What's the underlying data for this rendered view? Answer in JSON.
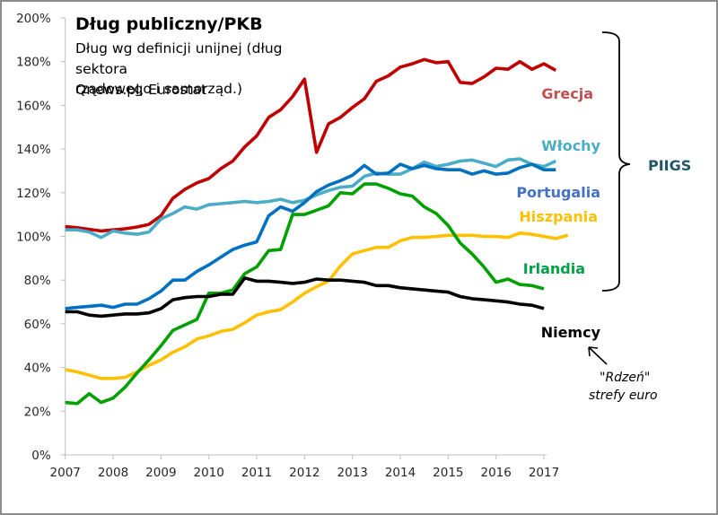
{
  "chart_data": {
    "type": "line",
    "title": "Dług publiczny/PKB",
    "subtitle": "Dług wg definicji unijnej (dług sektora rządowego i samorząd.)",
    "subtitle_lines": [
      "Dług wg definicji unijnej (dług sektora",
      "rządowego i samorząd.)"
    ],
    "source": "Qnews.pl, Eurostat",
    "xlabel": "",
    "ylabel": "",
    "xlim": [
      2007,
      2017
    ],
    "ylim": [
      0,
      200
    ],
    "x_ticks": [
      "2007",
      "2008",
      "2009",
      "2010",
      "2011",
      "2012",
      "2013",
      "2014",
      "2015",
      "2016",
      "2017"
    ],
    "y_ticks": [
      "0%",
      "20%",
      "40%",
      "60%",
      "80%",
      "100%",
      "120%",
      "140%",
      "160%",
      "180%",
      "200%"
    ],
    "y_tick_values": [
      0,
      20,
      40,
      60,
      80,
      100,
      120,
      140,
      160,
      180,
      200
    ],
    "grid": false,
    "legend": "inline labels at right",
    "x_step": 0.25,
    "series": [
      {
        "name": "Grecja",
        "color": "#c00000",
        "label_color": "#c0504d",
        "x_start": 2007.0,
        "values": [
          104.5,
          104,
          103.2,
          102.5,
          103,
          103.5,
          104.3,
          105.5,
          109.5,
          117.5,
          121.5,
          124.5,
          126.5,
          131,
          134.5,
          141,
          146,
          154.5,
          158,
          164,
          172,
          138.5,
          151.5,
          154.5,
          159,
          163,
          171,
          173.5,
          177.5,
          179,
          181,
          179.5,
          180,
          170.5,
          170,
          173,
          177,
          176.5,
          180,
          176.5,
          179,
          176
        ]
      },
      {
        "name": "Włochy",
        "color": "#4bacc6",
        "label_color": "#4bacc6",
        "x_start": 2007.0,
        "values": [
          103,
          103,
          102,
          99.5,
          102.5,
          101.5,
          101,
          102,
          108,
          110.5,
          113.5,
          112.5,
          114.5,
          115,
          115.5,
          116,
          115.5,
          116,
          117,
          115.5,
          116.5,
          119,
          121,
          122.5,
          123,
          127.5,
          129,
          128.5,
          128.5,
          131,
          134,
          132,
          133,
          134.5,
          135,
          133.5,
          132,
          135,
          135.5,
          133,
          132,
          134.5
        ]
      },
      {
        "name": "Portugalia",
        "color": "#0070c0",
        "label_color": "#4472c4",
        "x_start": 2007.0,
        "values": [
          67,
          67.5,
          68,
          68.5,
          67.5,
          69,
          69,
          71.5,
          75,
          80,
          80,
          84,
          87,
          90.5,
          94,
          96,
          97.5,
          109.5,
          113.5,
          111.5,
          115.5,
          120.5,
          123.5,
          125.5,
          128,
          132.5,
          128.5,
          129,
          133,
          131,
          132.5,
          131,
          130.5,
          130.5,
          128.5,
          130,
          128.5,
          129,
          131.5,
          133,
          130.5,
          130.5
        ]
      },
      {
        "name": "Hiszpania",
        "color": "#ffc000",
        "label_color": "#ffc000",
        "x_start": 2007.0,
        "values": [
          39,
          38,
          36.5,
          35,
          35,
          35.5,
          38,
          41,
          43.5,
          47,
          49.5,
          53,
          54.5,
          56.5,
          57.5,
          60.5,
          64,
          65.5,
          66.5,
          70,
          74,
          77,
          79.5,
          86.5,
          92,
          93.5,
          95,
          95,
          98,
          99.5,
          99.5,
          100,
          100.5,
          100.5,
          100.5,
          100,
          100,
          99.5,
          101.5,
          101,
          100,
          99,
          100.5
        ]
      },
      {
        "name": "Irlandia",
        "color": "#00a000",
        "label_color": "#00a046",
        "x_start": 2007.0,
        "values": [
          24,
          23.5,
          28,
          24,
          26,
          31,
          37.5,
          43.5,
          50,
          57,
          59.5,
          62,
          74,
          74,
          75.5,
          83,
          86,
          93.5,
          94,
          110,
          110,
          112,
          114,
          120,
          119.5,
          124,
          124,
          122,
          119.5,
          118.5,
          113.5,
          110.5,
          105,
          97,
          92,
          86,
          79,
          80.5,
          78,
          77.5,
          76
        ]
      },
      {
        "name": "Niemcy",
        "color": "#000000",
        "label_color": "#000000",
        "x_start": 2007.0,
        "values": [
          65.5,
          65.5,
          64,
          63.5,
          64,
          64.5,
          64.5,
          65,
          67,
          71,
          72,
          72.5,
          72.5,
          73.5,
          73.5,
          81,
          79.5,
          79.5,
          79,
          78.5,
          79,
          80.5,
          80,
          80,
          79.5,
          79,
          77.5,
          77.5,
          76.5,
          76,
          75.5,
          75,
          74.5,
          72.5,
          71.5,
          71,
          70.5,
          70,
          69,
          68.5,
          67
        ]
      }
    ],
    "annotations": {
      "group_brace_label": "PIIGS",
      "group_brace_label_color": "#215868",
      "core_note_line1": "\"Rdzeń\"",
      "core_note_line2": "strefy euro"
    }
  }
}
